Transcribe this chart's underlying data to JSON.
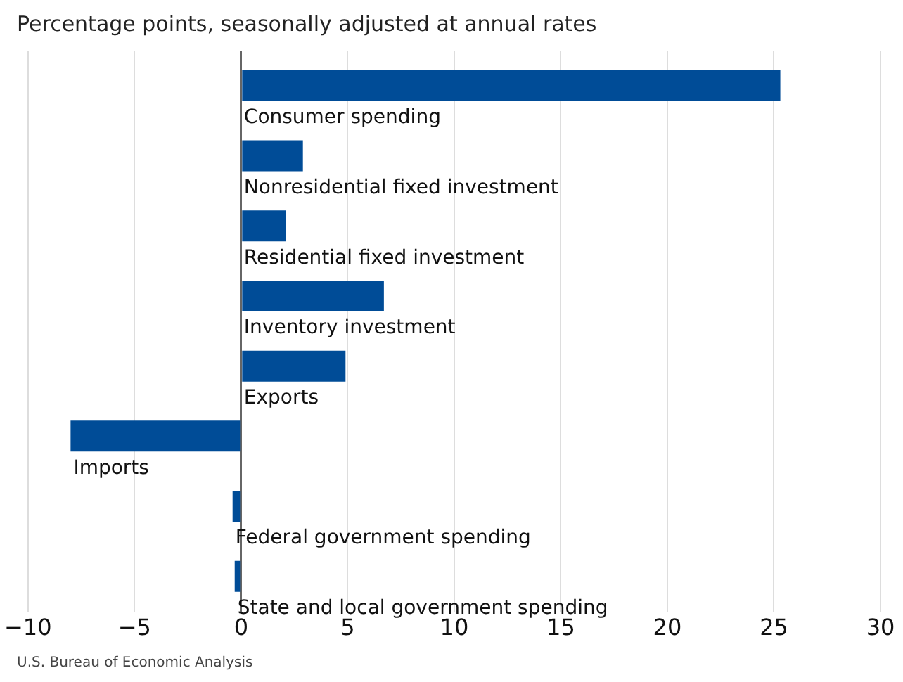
{
  "chart_data": {
    "type": "bar",
    "orientation": "horizontal",
    "title": "Percentage points, seasonally adjusted at annual rates",
    "categories": [
      "Consumer spending",
      "Nonresidential fixed investment",
      "Residential fixed investment",
      "Inventory investment",
      "Exports",
      "Imports",
      "Federal government spending",
      "State and local government spending"
    ],
    "values": [
      25.3,
      2.9,
      2.1,
      6.7,
      4.9,
      -8.0,
      -0.4,
      -0.3
    ],
    "color": "#004c97",
    "xlim": [
      -10,
      30
    ],
    "xticks": [
      -10,
      -5,
      0,
      5,
      10,
      15,
      20,
      25,
      30
    ],
    "grid": "x",
    "tick_labels": "x",
    "annotations": [
      "U.S. Bureau of Economic Analysis"
    ]
  }
}
